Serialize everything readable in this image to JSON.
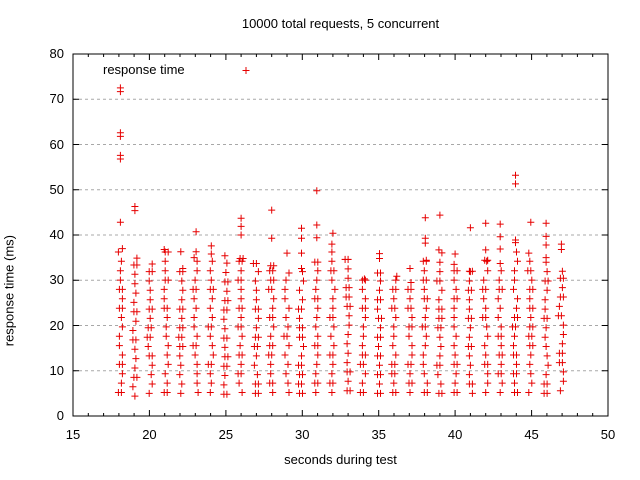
{
  "chart_data": {
    "type": "scatter",
    "title": "10000 total requests, 5 concurrent",
    "legend_position": "top-left-inside",
    "series": [
      {
        "name": "response time",
        "color": "#e60000",
        "marker": "plus"
      }
    ],
    "x_axis": {
      "label": "seconds during test",
      "min": 15,
      "max": 50,
      "major_ticks": [
        15,
        20,
        25,
        30,
        35,
        40,
        45,
        50
      ],
      "minor_tick_step": 1
    },
    "y_axis": {
      "label": "response time (ms)",
      "min": 0,
      "max": 80,
      "major_ticks": [
        0,
        10,
        20,
        30,
        40,
        50,
        60,
        70,
        80
      ],
      "grid": true,
      "grid_color": "#a8a8a8"
    },
    "border_color": "#000000",
    "background_color": "#ffffff",
    "stack_step_ms": 2.07,
    "columns_note": "each column is a dense vertical stack of plus markers from y_min to y_top (one request bin per second); 'above' lists sparse/outlier points above the dense stack",
    "columns": [
      {
        "x": 18.1,
        "y_min": 5.2,
        "y_top": 37.0,
        "above": [
          72.5,
          71.7,
          62.6,
          61.8,
          57.6,
          56.8,
          42.8
        ]
      },
      {
        "x": 19.05,
        "y_min": 4.4,
        "y_top": 34.9,
        "above": [
          46.3,
          45.4
        ]
      },
      {
        "x": 20.05,
        "y_min": 5.0,
        "y_top": 33.6,
        "above": []
      },
      {
        "x": 21.1,
        "y_min": 5.2,
        "y_top": 36.8,
        "above": []
      },
      {
        "x": 22.05,
        "y_min": 5.0,
        "y_top": 32.6,
        "above": [
          36.3
        ]
      },
      {
        "x": 23.05,
        "y_min": 5.2,
        "y_top": 35.0,
        "above": [
          40.7,
          36.3
        ]
      },
      {
        "x": 24.05,
        "y_min": 5.2,
        "y_top": 35.8,
        "above": [
          37.6
        ]
      },
      {
        "x": 25.0,
        "y_min": 4.8,
        "y_top": 35.4,
        "above": []
      },
      {
        "x": 26.0,
        "y_min": 5.2,
        "y_top": 34.8,
        "above": [
          43.7,
          41.9,
          40.0
        ]
      },
      {
        "x": 27.0,
        "y_min": 5.0,
        "y_top": 33.7,
        "above": []
      },
      {
        "x": 28.0,
        "y_min": 5.2,
        "y_top": 33.2,
        "above": [
          45.5,
          39.3
        ]
      },
      {
        "x": 29.0,
        "y_min": 5.2,
        "y_top": 31.6,
        "above": [
          36.0
        ]
      },
      {
        "x": 29.95,
        "y_min": 5.0,
        "y_top": 32.6,
        "above": [
          41.5,
          39.3,
          36.0
        ]
      },
      {
        "x": 30.95,
        "y_min": 5.2,
        "y_top": 34.0,
        "above": [
          49.8,
          42.2,
          39.4
        ]
      },
      {
        "x": 32.0,
        "y_min": 5.2,
        "y_top": 38.0,
        "above": [
          40.4
        ]
      },
      {
        "x": 33.0,
        "y_min": 5.6,
        "y_top": 34.6,
        "above": []
      },
      {
        "x": 34.0,
        "y_min": 5.2,
        "y_top": 30.3,
        "above": []
      },
      {
        "x": 35.05,
        "y_min": 5.0,
        "y_top": 31.6,
        "above": [
          35.9,
          34.8
        ]
      },
      {
        "x": 36.05,
        "y_min": 5.2,
        "y_top": 30.9,
        "above": []
      },
      {
        "x": 37.05,
        "y_min": 5.2,
        "y_top": 29.5,
        "above": [
          32.6
        ]
      },
      {
        "x": 38.05,
        "y_min": 5.2,
        "y_top": 34.4,
        "above": [
          43.8,
          39.3,
          38.2
        ]
      },
      {
        "x": 39.0,
        "y_min": 5.0,
        "y_top": 36.7,
        "above": [
          44.4
        ]
      },
      {
        "x": 40.0,
        "y_min": 5.2,
        "y_top": 33.5,
        "above": [
          35.8
        ]
      },
      {
        "x": 41.0,
        "y_min": 5.0,
        "y_top": 32.0,
        "above": [
          41.6
        ]
      },
      {
        "x": 42.0,
        "y_min": 5.2,
        "y_top": 34.4,
        "above": [
          42.6,
          36.7
        ]
      },
      {
        "x": 42.95,
        "y_min": 5.2,
        "y_top": 33.7,
        "above": [
          42.4,
          39.6,
          36.9
        ]
      },
      {
        "x": 43.95,
        "y_min": 5.2,
        "y_top": 38.9,
        "above": [
          53.2,
          51.3
        ]
      },
      {
        "x": 44.95,
        "y_min": 5.2,
        "y_top": 36.0,
        "above": [
          42.8
        ]
      },
      {
        "x": 45.95,
        "y_min": 5.0,
        "y_top": 35.0,
        "above": [
          42.6,
          39.7,
          37.8
        ]
      },
      {
        "x": 46.95,
        "y_min": 5.6,
        "y_top": 32.0,
        "above": [
          38.0,
          36.8
        ]
      }
    ]
  }
}
